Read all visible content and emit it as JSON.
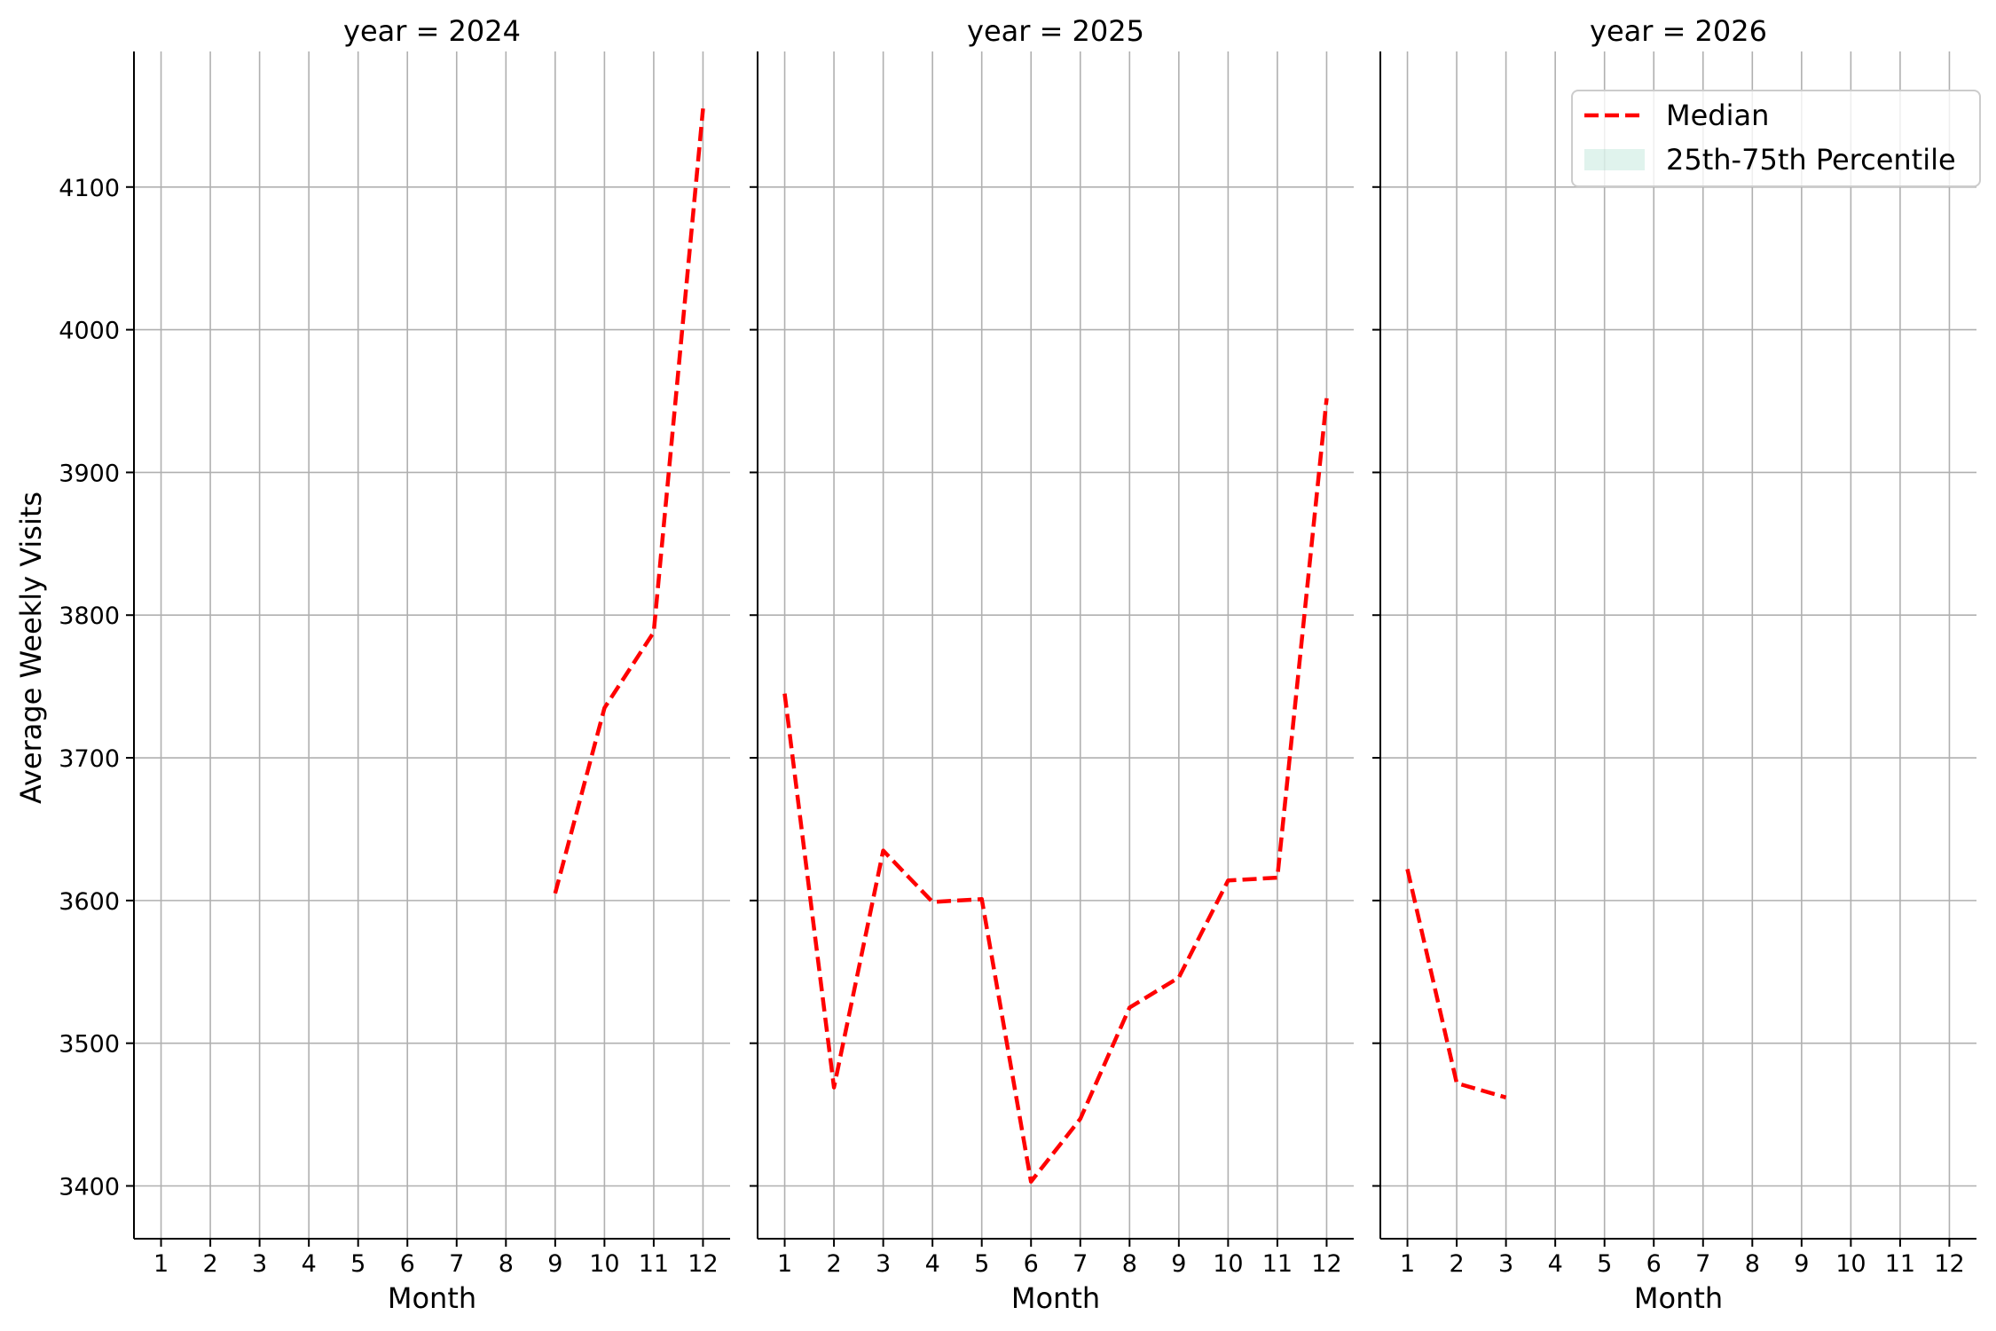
{
  "chart_data": {
    "type": "line",
    "ylabel": "Average Weekly Visits",
    "xlabel": "Month",
    "xlim": [
      0.45,
      12.55
    ],
    "ylim": [
      3363,
      4195
    ],
    "x_ticks": [
      1,
      2,
      3,
      4,
      5,
      6,
      7,
      8,
      9,
      10,
      11,
      12
    ],
    "y_ticks": [
      3400,
      3500,
      3600,
      3700,
      3800,
      3900,
      4000,
      4100
    ],
    "grid": true,
    "legend": {
      "placement": "upper-right",
      "entries": [
        {
          "label": "Median",
          "color": "#ff0000",
          "style": "dashed"
        },
        {
          "label": "25th-75th Percentile",
          "color": "#66c2a5",
          "style": "band"
        }
      ]
    },
    "panels": [
      {
        "title": "year = 2024",
        "series": [
          {
            "name": "Median",
            "x": [
              9,
              10,
              11,
              12
            ],
            "y": [
              3605,
              3735,
              3788,
              4155
            ]
          }
        ]
      },
      {
        "title": "year = 2025",
        "series": [
          {
            "name": "Median",
            "x": [
              1,
              2,
              3,
              4,
              5,
              6,
              7,
              8,
              9,
              10,
              11,
              12
            ],
            "y": [
              3745,
              3469,
              3635,
              3599,
              3601,
              3403,
              3447,
              3525,
              3546,
              3614,
              3616,
              3952
            ]
          }
        ]
      },
      {
        "title": "year = 2026",
        "series": [
          {
            "name": "Median",
            "x": [
              1,
              2,
              3
            ],
            "y": [
              3622,
              3472,
              3462
            ]
          }
        ]
      }
    ]
  }
}
